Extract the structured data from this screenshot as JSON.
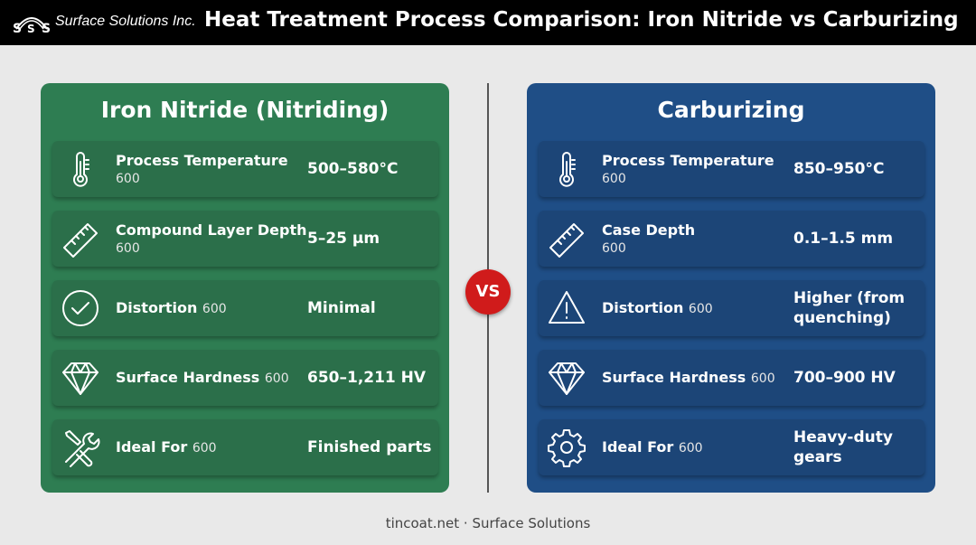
{
  "header": {
    "logo": "Surface Solutions Inc.",
    "title": "Heat Treatment Process Comparison: Iron Nitride vs Carburizing"
  },
  "panels": [
    {
      "title": "Iron Nitride (Nitriding)",
      "rows": [
        {
          "label": "Process Temperature",
          "note": "600",
          "value": "500–580°C"
        },
        {
          "label": "Compound Layer Depth",
          "note": "600",
          "value": "5–25 µm"
        },
        {
          "label": "Distortion",
          "note": "600",
          "value": "Minimal"
        },
        {
          "label": "Surface Hardness",
          "note": "600",
          "value": "650–1,211 HV"
        },
        {
          "label": "Ideal For",
          "note": "600",
          "value": "Finished parts"
        }
      ]
    },
    {
      "title": "Carburizing",
      "rows": [
        {
          "label": "Process Temperature",
          "note": "600",
          "value": "850–950°C"
        },
        {
          "label": "Case Depth",
          "note": "600",
          "value": "0.1–1.5 mm"
        },
        {
          "label": "Distortion",
          "note": "600",
          "value": "Higher (from quenching)"
        },
        {
          "label": "Surface Hardness",
          "note": "600",
          "value": "700–900 HV"
        },
        {
          "label": "Ideal For",
          "note": "600",
          "value": "Heavy-duty gears"
        }
      ]
    }
  ],
  "badge": "VS",
  "footer": "tincoat.net · Surface Solutions"
}
